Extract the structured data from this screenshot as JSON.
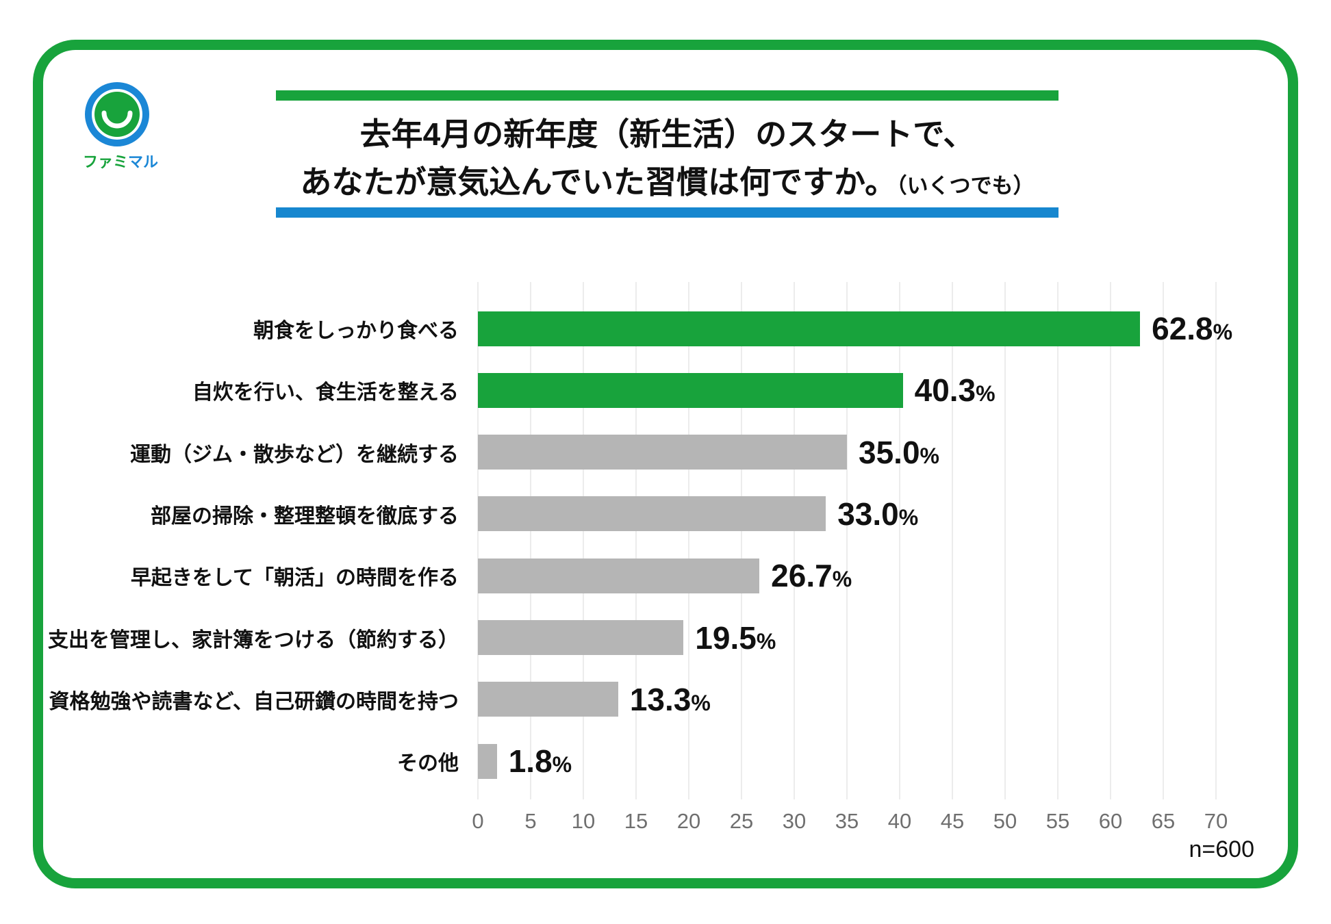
{
  "page": {
    "background": "#ffffff",
    "frame_color": "#18a33c"
  },
  "logo": {
    "name": "ファミマル",
    "text_green": "ファミ",
    "text_blue": "マル",
    "green": "#18a33c",
    "blue": "#1b87d6"
  },
  "title": {
    "line1": "去年4月の新年度（新生活）のスタートで、",
    "line2_main": "あなたが意気込んでいた習慣は何ですか。",
    "line2_small": "（いくつでも）",
    "top_rule_color": "#18a33c",
    "bottom_rule_color": "#1787cf"
  },
  "chart_data": {
    "type": "bar",
    "orientation": "horizontal",
    "title": "去年4月の新年度（新生活）のスタートで、あなたが意気込んでいた習慣は何ですか。（いくつでも）",
    "categories": [
      "朝食をしっかり食べる",
      "自炊を行い、食生活を整える",
      "運動（ジム・散歩など）を継続する",
      "部屋の掃除・整理整頓を徹底する",
      "早起きをして「朝活」の時間を作る",
      "支出を管理し、家計簿をつける（節約する）",
      "資格勉強や読書など、自己研鑽の時間を持つ",
      "その他"
    ],
    "values": [
      62.8,
      40.3,
      35.0,
      33.0,
      26.7,
      19.5,
      13.3,
      1.8
    ],
    "value_labels": [
      "62.8",
      "40.3",
      "35.0",
      "33.0",
      "26.7",
      "19.5",
      "13.3",
      "1.8"
    ],
    "value_suffix": "%",
    "bar_color_roles": [
      "highlight",
      "highlight",
      "default",
      "default",
      "default",
      "default",
      "default",
      "default"
    ],
    "highlight_color": "#18a33c",
    "default_color": "#b5b5b5",
    "xlim": [
      0,
      70
    ],
    "xticks": [
      0,
      5,
      10,
      15,
      20,
      25,
      30,
      35,
      40,
      45,
      50,
      55,
      60,
      65,
      70
    ],
    "grid": true,
    "gridline_color": "#ececec",
    "tick_label_color": "#6f6f6f",
    "legend": "none",
    "sample_size": "n=600"
  }
}
